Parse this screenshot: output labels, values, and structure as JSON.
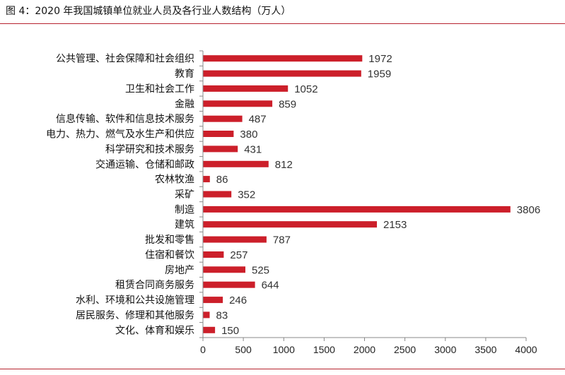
{
  "title": "图 4：2020 年我国城镇单位就业人员及各行业人数结构（万人）",
  "colors": {
    "bar": "#cc1f2a",
    "rule": "#b7232e",
    "axis": "#888888"
  },
  "chart_data": {
    "type": "bar",
    "orientation": "horizontal",
    "title": "图 4：2020 年我国城镇单位就业人员及各行业人数结构（万人）",
    "xlabel": "",
    "ylabel": "",
    "xlim": [
      0,
      4000
    ],
    "xticks": [
      0,
      500,
      1000,
      1500,
      2000,
      2500,
      3000,
      3500,
      4000
    ],
    "grid": false,
    "categories": [
      "公共管理、社会保障和社会组织",
      "教育",
      "卫生和社会工作",
      "金融",
      "信息传输、软件和信息技术服务",
      "电力、热力、燃气及水生产和供应",
      "科学研究和技术服务",
      "交通运输、仓储和邮政",
      "农林牧渔",
      "采矿",
      "制造",
      "建筑",
      "批发和零售",
      "住宿和餐饮",
      "房地产",
      "租赁合同商务服务",
      "水利、环境和公共设施管理",
      "居民服务、修理和其他服务",
      "文化、体育和娱乐"
    ],
    "values": [
      1972,
      1959,
      1052,
      859,
      487,
      380,
      431,
      812,
      86,
      352,
      3806,
      2153,
      787,
      257,
      525,
      644,
      246,
      83,
      150
    ]
  }
}
